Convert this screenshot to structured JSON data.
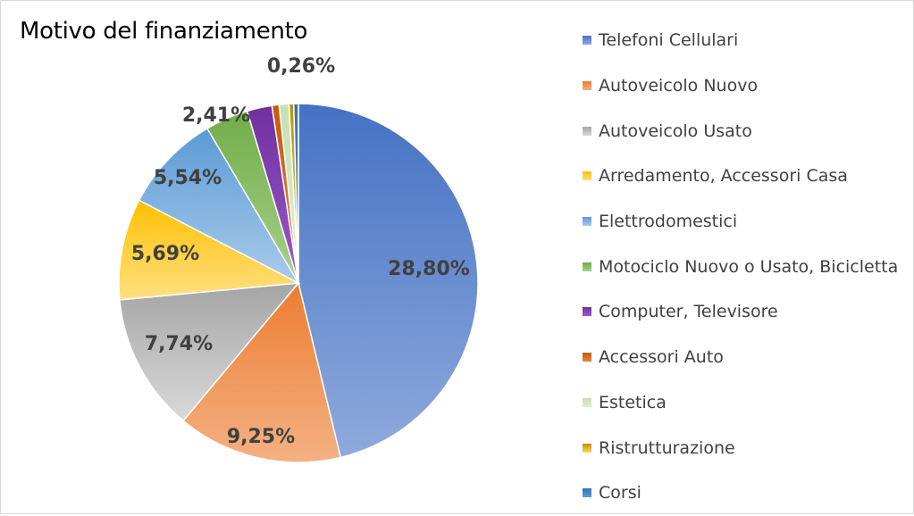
{
  "chart_data": {
    "type": "pie",
    "title": "Motivo del finanziamento",
    "legend_position": "right",
    "categories": [
      "Telefoni Cellulari",
      "Autoveicolo Nuovo",
      "Autoveicolo Usato",
      "Arredamento, Accessori Casa",
      "Elettrodomestici",
      "Motociclo Nuovo o Usato, Bicicletta",
      "Computer, Televisore",
      "Accessori Auto",
      "Estetica",
      "Ristrutturazione",
      "Corsi"
    ],
    "values": [
      28.8,
      9.25,
      7.74,
      5.69,
      5.54,
      2.41,
      1.4,
      0.4,
      0.55,
      0.26,
      0.26
    ],
    "data_labels": [
      "28,80%",
      "9,25%",
      "7,74%",
      "5,69%",
      "5,54%",
      "2,41%",
      "",
      "",
      "",
      "0,26%",
      ""
    ],
    "colors": [
      [
        "#4472c4",
        "#8faadc"
      ],
      [
        "#ed7d31",
        "#f4b183"
      ],
      [
        "#a5a5a5",
        "#d9d9d9"
      ],
      [
        "#ffc000",
        "#ffe083"
      ],
      [
        "#5b9bd5",
        "#a9cbeb"
      ],
      [
        "#70ad47",
        "#a9d18e"
      ],
      [
        "#7030a0",
        "#9b59c8"
      ],
      [
        "#c55a11",
        "#e0883e"
      ],
      [
        "#c5e0b4",
        "#dff0d0"
      ],
      [
        "#bf9000",
        "#ffd966"
      ],
      [
        "#2e75b6",
        "#5b9bd5"
      ]
    ]
  }
}
